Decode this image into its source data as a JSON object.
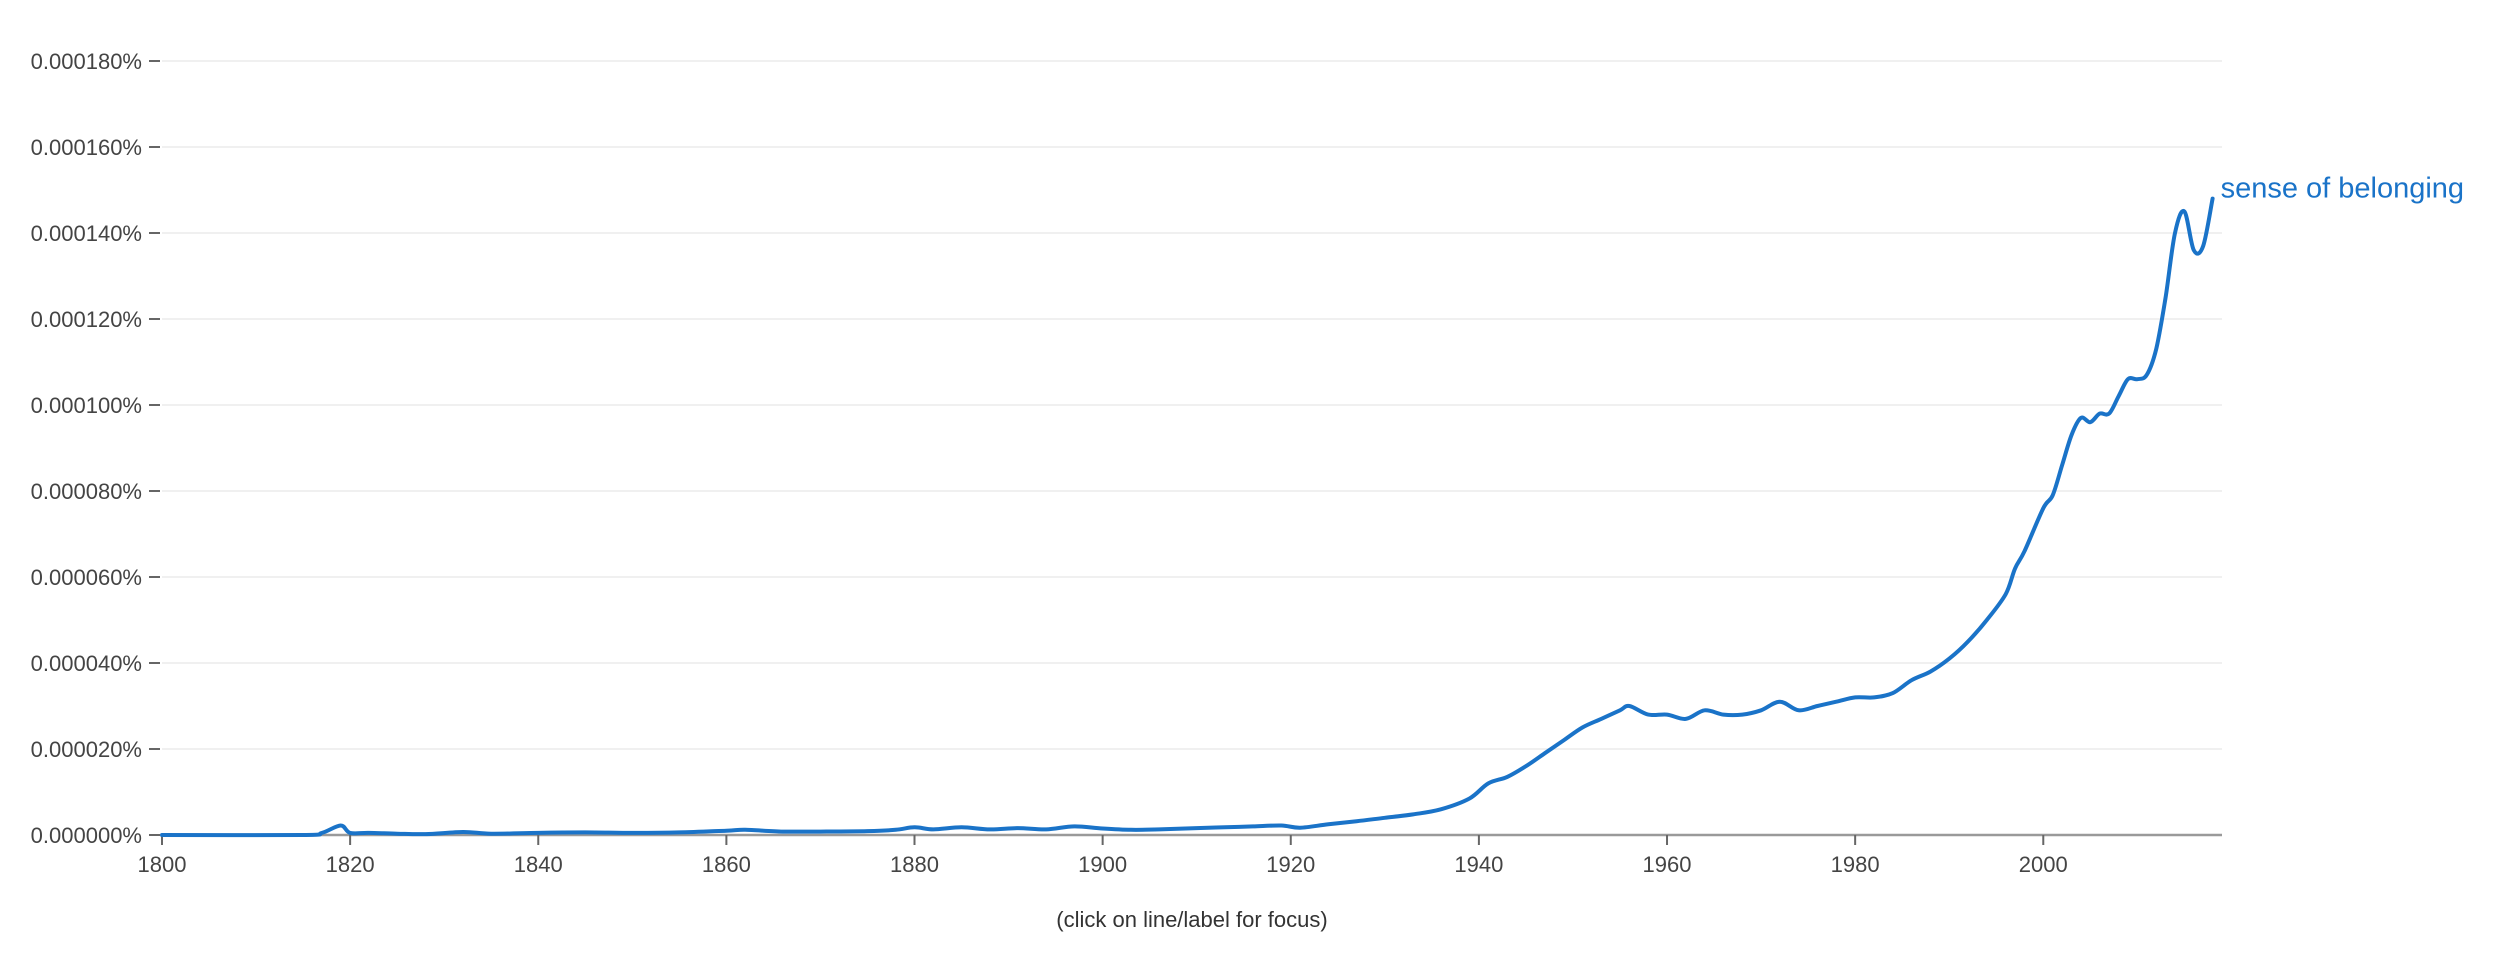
{
  "chart_data": {
    "type": "line",
    "title": "",
    "xlabel": "",
    "ylabel": "",
    "xlim": [
      1800,
      2019
    ],
    "ylim": [
      0,
      0.00018
    ],
    "y_unit": "%",
    "grid": true,
    "x_ticks": [
      1800,
      1820,
      1840,
      1860,
      1880,
      1900,
      1920,
      1940,
      1960,
      1980,
      2000
    ],
    "y_ticks": [
      {
        "value": 0,
        "label": "0.000000%"
      },
      {
        "value": 2e-05,
        "label": "0.000020%"
      },
      {
        "value": 4e-05,
        "label": "0.000040%"
      },
      {
        "value": 6e-05,
        "label": "0.000060%"
      },
      {
        "value": 8e-05,
        "label": "0.000080%"
      },
      {
        "value": 0.0001,
        "label": "0.000100%"
      },
      {
        "value": 0.00012,
        "label": "0.000120%"
      },
      {
        "value": 0.00014,
        "label": "0.000140%"
      },
      {
        "value": 0.00016,
        "label": "0.000160%"
      },
      {
        "value": 0.00018,
        "label": "0.000180%"
      }
    ],
    "series": [
      {
        "name": "sense of belonging",
        "color": "#1a73c8",
        "points": [
          [
            1800,
            0
          ],
          [
            1815,
            0
          ],
          [
            1817,
            5e-07
          ],
          [
            1819,
            2.2e-06
          ],
          [
            1820,
            5e-07
          ],
          [
            1822,
            5e-07
          ],
          [
            1825,
            3e-07
          ],
          [
            1828,
            2e-07
          ],
          [
            1832,
            7e-07
          ],
          [
            1835,
            3e-07
          ],
          [
            1840,
            5e-07
          ],
          [
            1845,
            6e-07
          ],
          [
            1850,
            5e-07
          ],
          [
            1855,
            6e-07
          ],
          [
            1860,
            1e-06
          ],
          [
            1862,
            1.2e-06
          ],
          [
            1866,
            8e-07
          ],
          [
            1870,
            8e-07
          ],
          [
            1875,
            9e-07
          ],
          [
            1878,
            1.2e-06
          ],
          [
            1880,
            1.8e-06
          ],
          [
            1882,
            1.3e-06
          ],
          [
            1885,
            1.8e-06
          ],
          [
            1888,
            1.3e-06
          ],
          [
            1891,
            1.6e-06
          ],
          [
            1894,
            1.3e-06
          ],
          [
            1897,
            2e-06
          ],
          [
            1900,
            1.5e-06
          ],
          [
            1903,
            1.2e-06
          ],
          [
            1906,
            1.3e-06
          ],
          [
            1910,
            1.6e-06
          ],
          [
            1913,
            1.8e-06
          ],
          [
            1916,
            2e-06
          ],
          [
            1919,
            2.2e-06
          ],
          [
            1921,
            1.7e-06
          ],
          [
            1924,
            2.5e-06
          ],
          [
            1927,
            3.2e-06
          ],
          [
            1930,
            4e-06
          ],
          [
            1933,
            4.8e-06
          ],
          [
            1936,
            6e-06
          ],
          [
            1939,
            8.5e-06
          ],
          [
            1941,
            1.2e-05
          ],
          [
            1943,
            1.35e-05
          ],
          [
            1945,
            1.6e-05
          ],
          [
            1947,
            1.9e-05
          ],
          [
            1949,
            2.2e-05
          ],
          [
            1951,
            2.5e-05
          ],
          [
            1953,
            2.7e-05
          ],
          [
            1955,
            2.9e-05
          ],
          [
            1956,
            3e-05
          ],
          [
            1958,
            2.8e-05
          ],
          [
            1960,
            2.8e-05
          ],
          [
            1962,
            2.7e-05
          ],
          [
            1964,
            2.9e-05
          ],
          [
            1966,
            2.8e-05
          ],
          [
            1968,
            2.8e-05
          ],
          [
            1970,
            2.9e-05
          ],
          [
            1972,
            3.1e-05
          ],
          [
            1974,
            2.9e-05
          ],
          [
            1976,
            3e-05
          ],
          [
            1978,
            3.1e-05
          ],
          [
            1980,
            3.2e-05
          ],
          [
            1982,
            3.2e-05
          ],
          [
            1984,
            3.3e-05
          ],
          [
            1986,
            3.6e-05
          ],
          [
            1988,
            3.8e-05
          ],
          [
            1990,
            4.1e-05
          ],
          [
            1992,
            4.5e-05
          ],
          [
            1994,
            5e-05
          ],
          [
            1996,
            5.6e-05
          ],
          [
            1997,
            6.2e-05
          ],
          [
            1998,
            6.6e-05
          ],
          [
            2000,
            7.6e-05
          ],
          [
            2001,
            7.9e-05
          ],
          [
            2002,
            8.6e-05
          ],
          [
            2003,
            9.3e-05
          ],
          [
            2004,
            9.7e-05
          ],
          [
            2005,
            9.6e-05
          ],
          [
            2006,
            9.8e-05
          ],
          [
            2007,
            9.8e-05
          ],
          [
            2008,
            0.000102
          ],
          [
            2009,
            0.000106
          ],
          [
            2010,
            0.000106
          ],
          [
            2011,
            0.000107
          ],
          [
            2012,
            0.000113
          ],
          [
            2013,
            0.000125
          ],
          [
            2014,
            0.00014
          ],
          [
            2015,
            0.000145
          ],
          [
            2016,
            0.000136
          ],
          [
            2017,
            0.000137
          ],
          [
            2018,
            0.000148
          ]
        ]
      }
    ],
    "footer_note": "(click on line/label for focus)"
  }
}
